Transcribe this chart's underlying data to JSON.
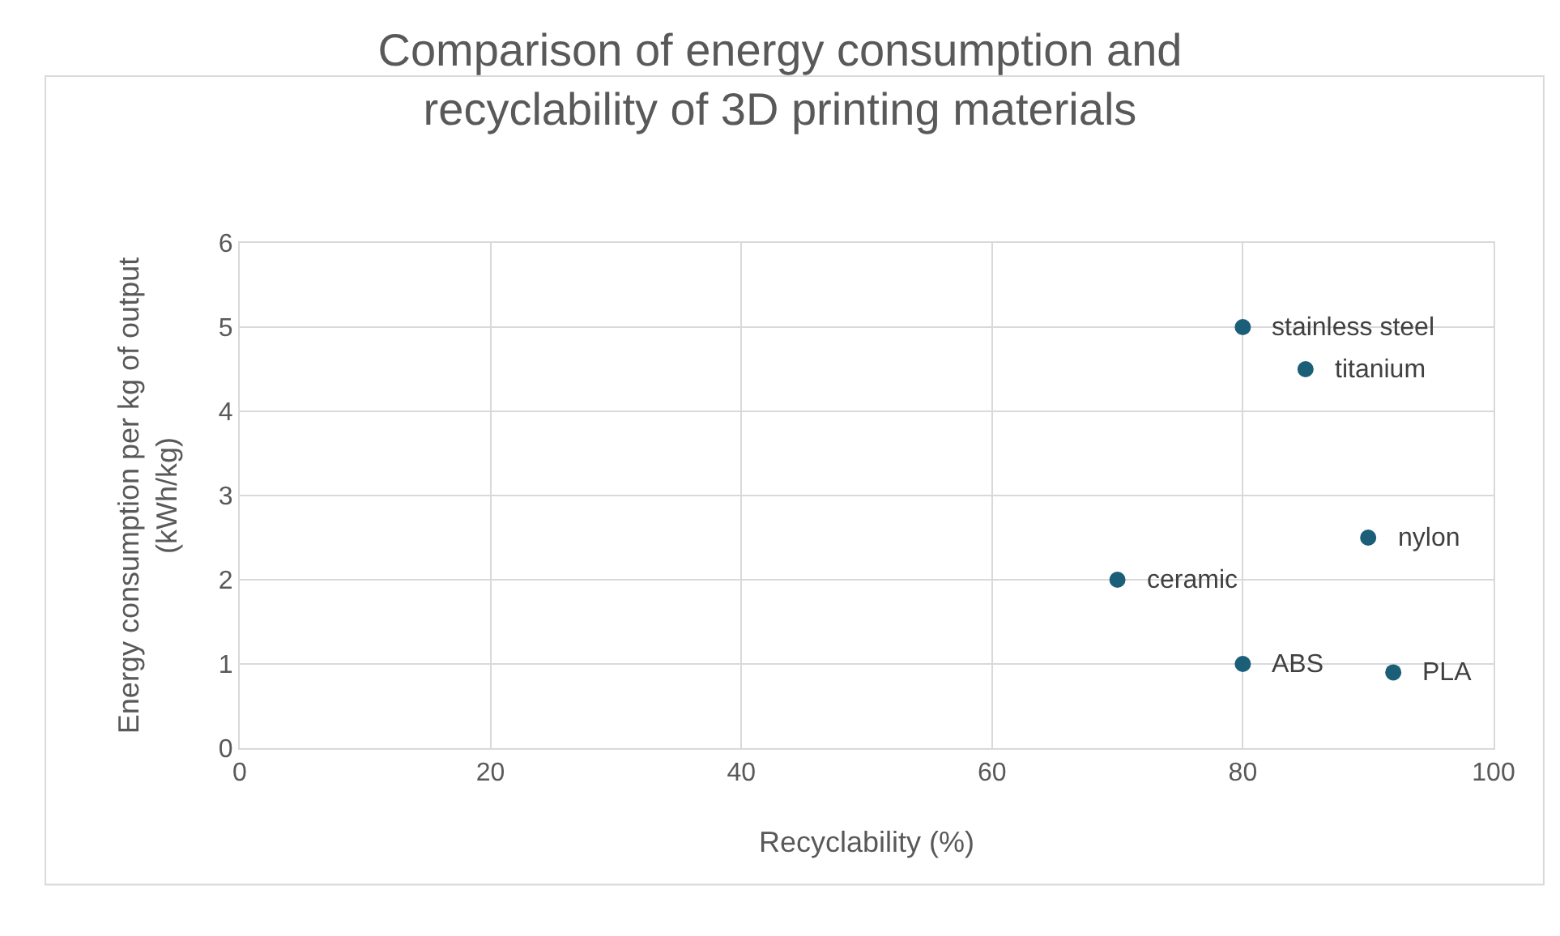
{
  "chart_data": {
    "type": "scatter",
    "title": "Comparison of energy consumption and recyclability of 3D printing materials",
    "xlabel": "Recyclability (%)",
    "ylabel": "Energy consumption per kg of output (kWh/kg)",
    "x": [
      80,
      85,
      90,
      70,
      80,
      92
    ],
    "series": [
      {
        "color": "#1b5e78",
        "values": [
          5,
          4.5,
          2.5,
          2,
          1,
          0.9
        ]
      }
    ],
    "annotations": [
      {
        "text": "stainless steel",
        "x": 80,
        "y": 5
      },
      {
        "text": "titanium",
        "x": 85,
        "y": 4.5
      },
      {
        "text": "nylon",
        "x": 90,
        "y": 2.5
      },
      {
        "text": "ceramic",
        "x": 70,
        "y": 2
      },
      {
        "text": "ABS",
        "x": 80,
        "y": 1
      },
      {
        "text": "PLA",
        "x": 92,
        "y": 0.9
      }
    ],
    "xlim": [
      0,
      100
    ],
    "xticks": [
      0,
      20,
      40,
      60,
      80,
      100
    ],
    "ylim": [
      0,
      6
    ],
    "yticks": [
      0,
      1,
      2,
      3,
      4,
      5,
      6
    ],
    "grid": true,
    "marker": "circle"
  }
}
